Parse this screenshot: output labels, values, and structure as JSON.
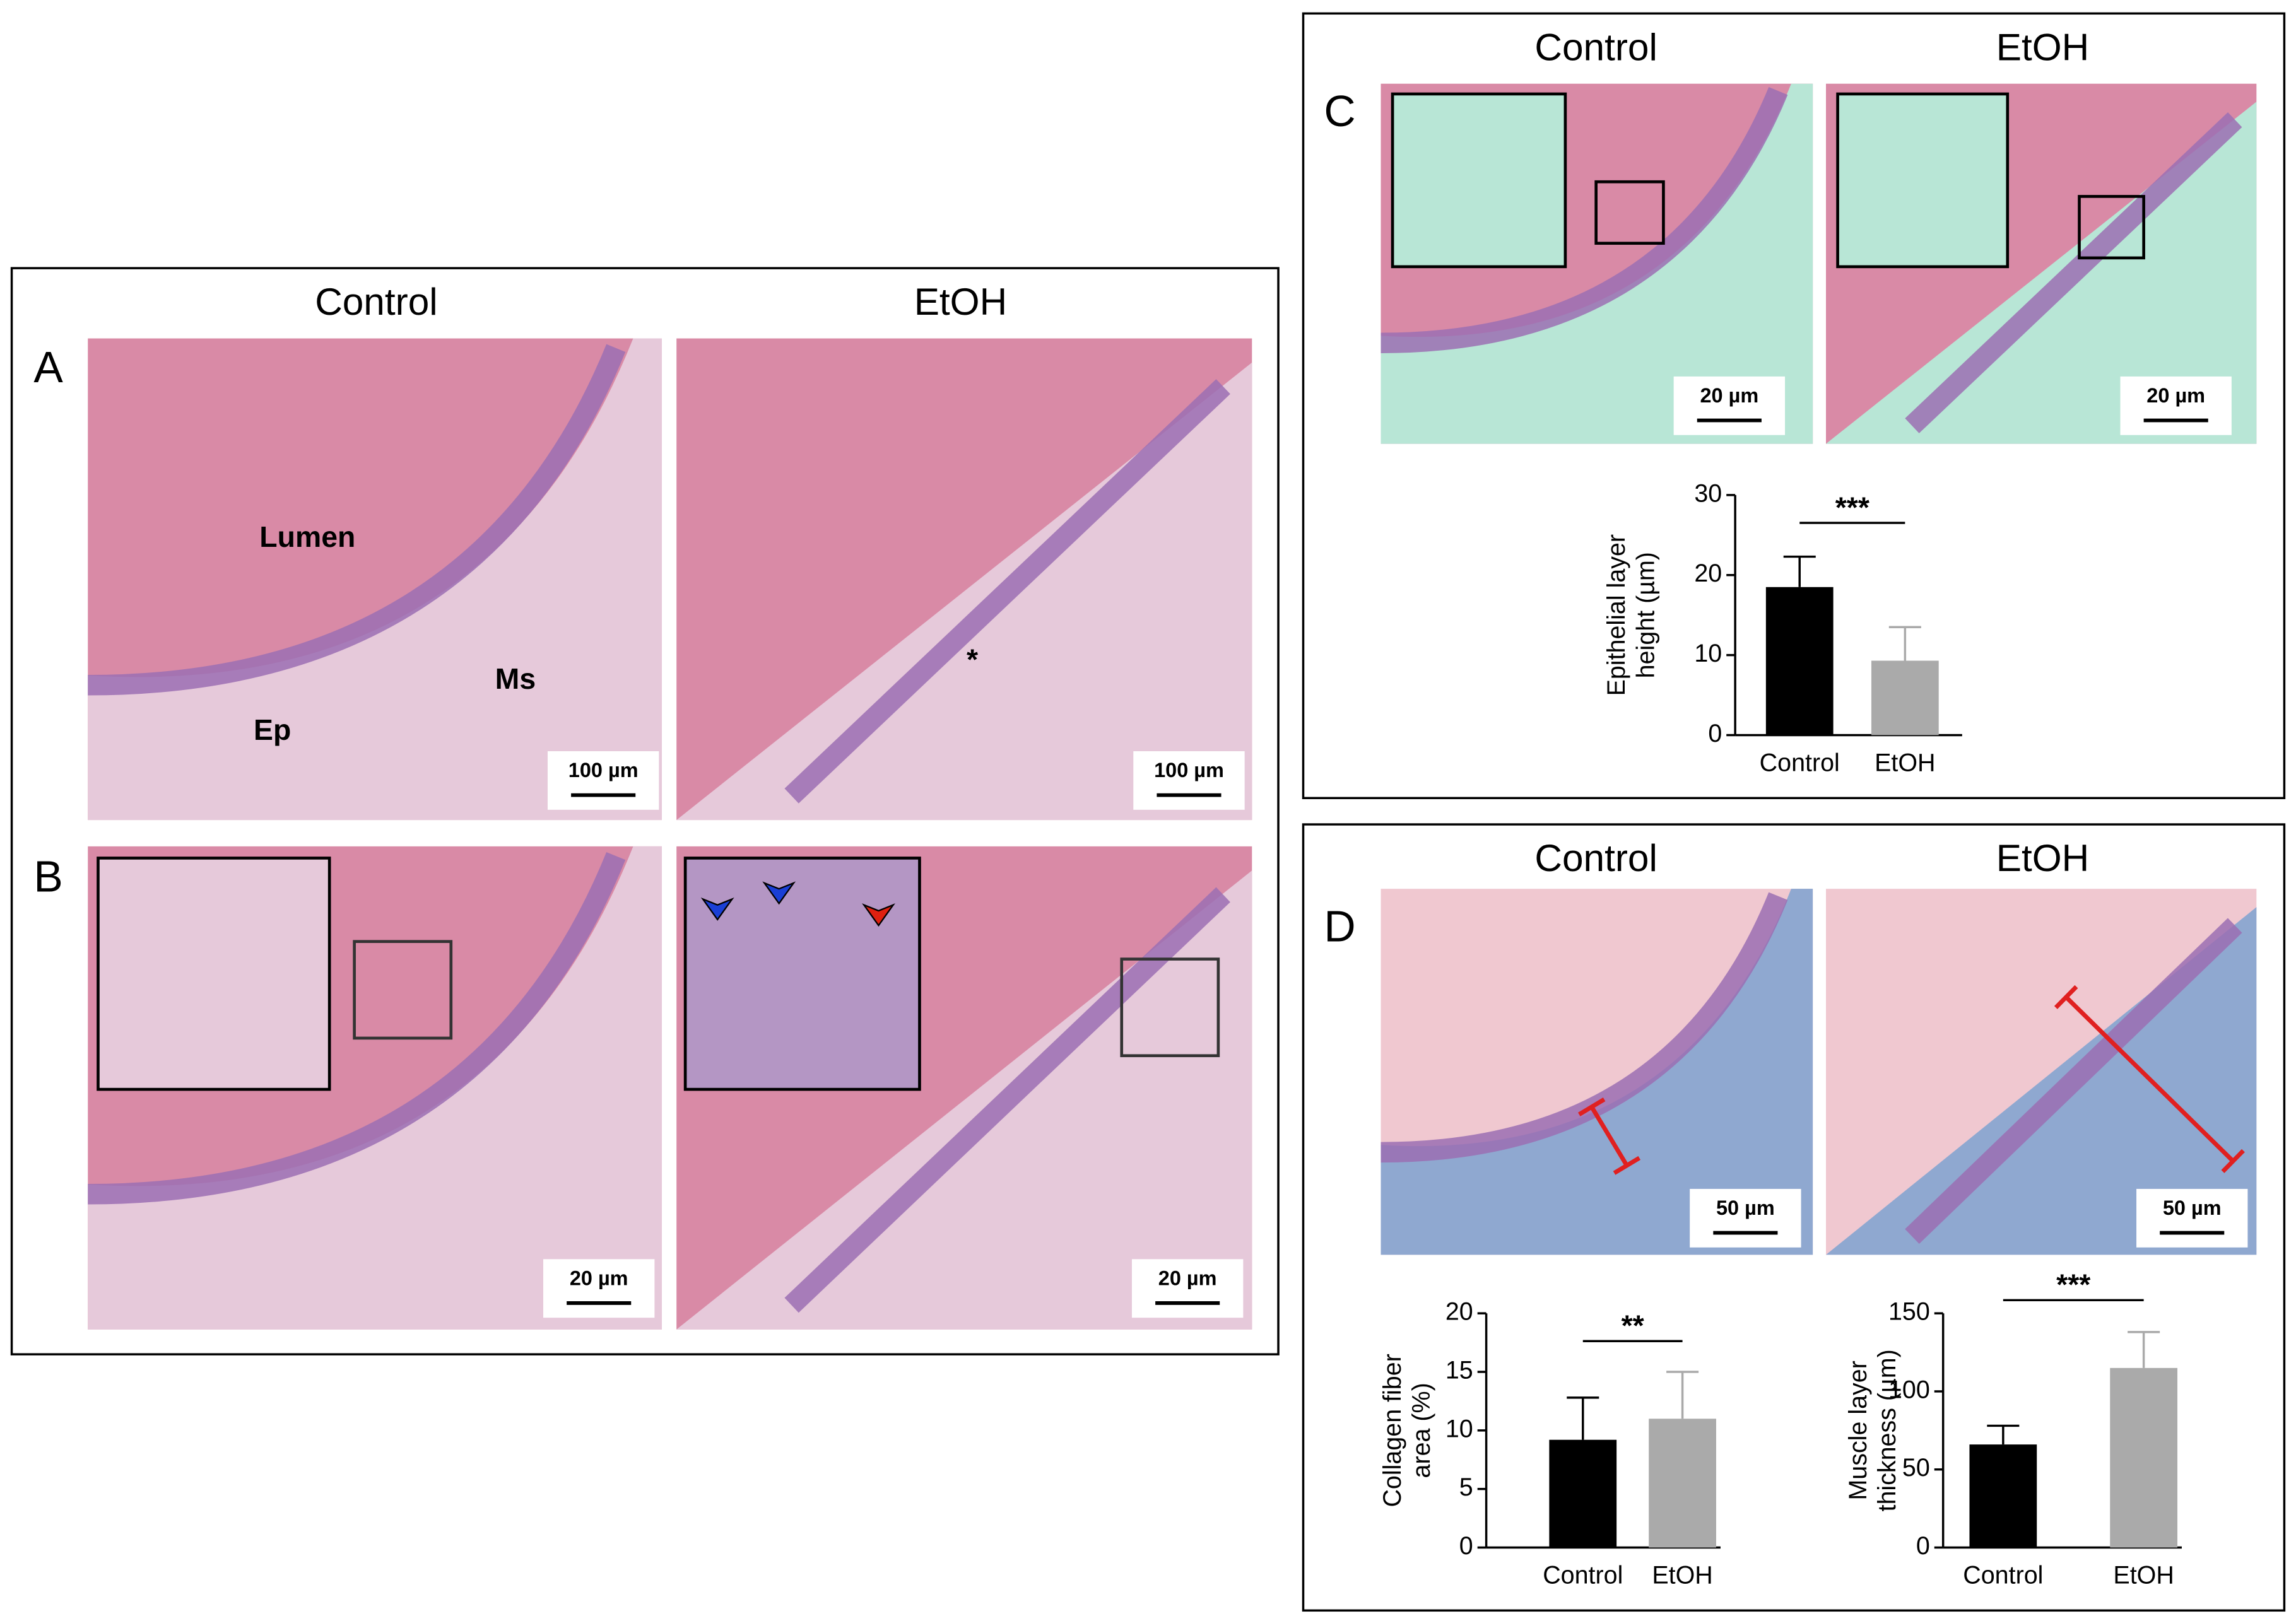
{
  "panels": [
    {
      "label": "A",
      "columns": [
        "Control",
        "EtOH"
      ],
      "scale_bars": [
        "100 µm",
        "100 µm"
      ],
      "annotations": [
        "Lumen",
        "Ms",
        "Ep",
        "*"
      ]
    },
    {
      "label": "B",
      "scale_bars": [
        "20 µm",
        "20 µm"
      ]
    },
    {
      "label": "C",
      "columns": [
        "Control",
        "EtOH"
      ],
      "scale_bars": [
        "20 µm",
        "20 µm"
      ]
    },
    {
      "label": "D",
      "columns": [
        "Control",
        "EtOH"
      ],
      "scale_bars": [
        "50 µm",
        "50 µm"
      ]
    }
  ],
  "chart_data": [
    {
      "type": "bar",
      "ylabel": [
        "Epithelial layer",
        "height (µm)"
      ],
      "categories": [
        "Control",
        "EtOH"
      ],
      "values": [
        18.5,
        9.3
      ],
      "errors": [
        3.8,
        4.2
      ],
      "colors": [
        "#000000",
        "#aaaaaa"
      ],
      "ylim": [
        0,
        30
      ],
      "yticks": [
        0,
        10,
        20,
        30
      ],
      "significance": "***"
    },
    {
      "type": "bar",
      "ylabel": [
        "Collagen fiber",
        "area (%)"
      ],
      "categories": [
        "Control",
        "EtOH"
      ],
      "values": [
        9.2,
        11.0
      ],
      "errors": [
        3.6,
        4.0
      ],
      "colors": [
        "#000000",
        "#aaaaaa"
      ],
      "ylim": [
        0,
        20
      ],
      "yticks": [
        0,
        5,
        10,
        15,
        20
      ],
      "significance": "**"
    },
    {
      "type": "bar",
      "ylabel": [
        "Muscle layer",
        "thickness (µm)"
      ],
      "categories": [
        "Control",
        "EtOH"
      ],
      "values": [
        66,
        115
      ],
      "errors": [
        12,
        23
      ],
      "colors": [
        "#000000",
        "#aaaaaa"
      ],
      "ylim": [
        0,
        150
      ],
      "yticks": [
        0,
        50,
        100,
        150
      ],
      "significance": "***"
    }
  ]
}
